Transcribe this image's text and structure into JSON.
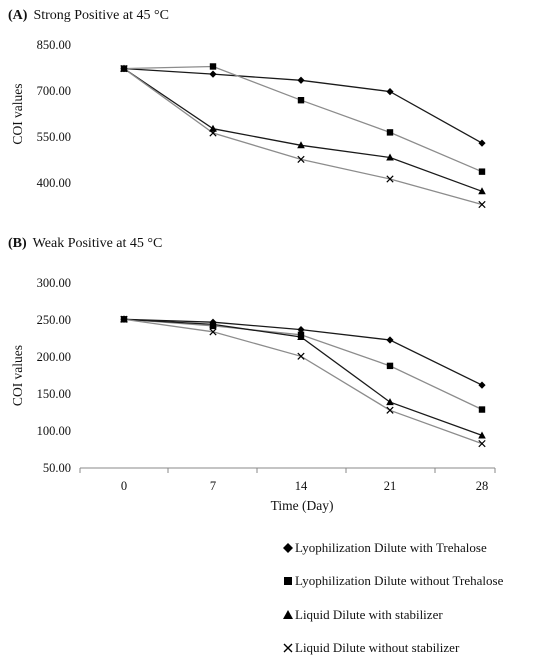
{
  "chart_data": [
    {
      "type": "line",
      "panel_label": "(A)",
      "title": "Strong  Positive at 45 °C",
      "xlabel": "",
      "ylabel": "COI values",
      "x": [
        0,
        7,
        14,
        21,
        28
      ],
      "x_tick_labels": [],
      "ylim": [
        400,
        850
      ],
      "y_tick_labels": [
        "400.00",
        "550.00",
        "700.00",
        "850.00"
      ],
      "series": [
        {
          "name": "Lyophilization Dilute with Trehalose",
          "marker": "diamond",
          "color": "#1a1a1a",
          "values": [
            773,
            755,
            735,
            698,
            530
          ]
        },
        {
          "name": "Lyophilization Dilute without Trehalose",
          "marker": "square",
          "color": "#8c8c8c",
          "values": [
            773,
            780,
            670,
            565,
            437
          ]
        },
        {
          "name": "Liquid Dilute with stabilizer",
          "marker": "triangle",
          "color": "#1a1a1a",
          "values": [
            773,
            577,
            523,
            483,
            373
          ]
        },
        {
          "name": "Liquid Dilute without stabilizer",
          "marker": "x",
          "color": "#8c8c8c",
          "values": [
            773,
            563,
            477,
            413,
            330
          ]
        }
      ]
    },
    {
      "type": "line",
      "panel_label": "(B)",
      "title": "Weak Positive at 45 °C",
      "xlabel": "Time (Day)",
      "ylabel": "COI values",
      "x": [
        0,
        7,
        14,
        21,
        28
      ],
      "x_tick_labels": [
        "0",
        "7",
        "14",
        "21",
        "28"
      ],
      "ylim": [
        50,
        300
      ],
      "y_tick_labels": [
        "50.00",
        "100.00",
        "150.00",
        "200.00",
        "250.00",
        "300.00"
      ],
      "series": [
        {
          "name": "Lyophilization Dilute with Trehalose",
          "marker": "diamond",
          "color": "#1a1a1a",
          "values": [
            251,
            247,
            237,
            223,
            162
          ]
        },
        {
          "name": "Lyophilization Dilute without Trehalose",
          "marker": "square",
          "color": "#8c8c8c",
          "values": [
            251,
            242,
            230,
            188,
            129
          ]
        },
        {
          "name": "Liquid Dilute with stabilizer",
          "marker": "triangle",
          "color": "#1a1a1a",
          "values": [
            251,
            244,
            227,
            139,
            94
          ]
        },
        {
          "name": "Liquid Dilute without stabilizer",
          "marker": "x",
          "color": "#8c8c8c",
          "values": [
            251,
            234,
            201,
            128,
            83
          ]
        }
      ]
    }
  ],
  "legend": [
    {
      "label": "Lyophilization Dilute with Trehalose",
      "marker": "diamond"
    },
    {
      "label": "Lyophilization Dilute without Trehalose",
      "marker": "square"
    },
    {
      "label": "Liquid Dilute with stabilizer",
      "marker": "triangle"
    },
    {
      "label": "Liquid Dilute without stabilizer",
      "marker": "x"
    }
  ]
}
